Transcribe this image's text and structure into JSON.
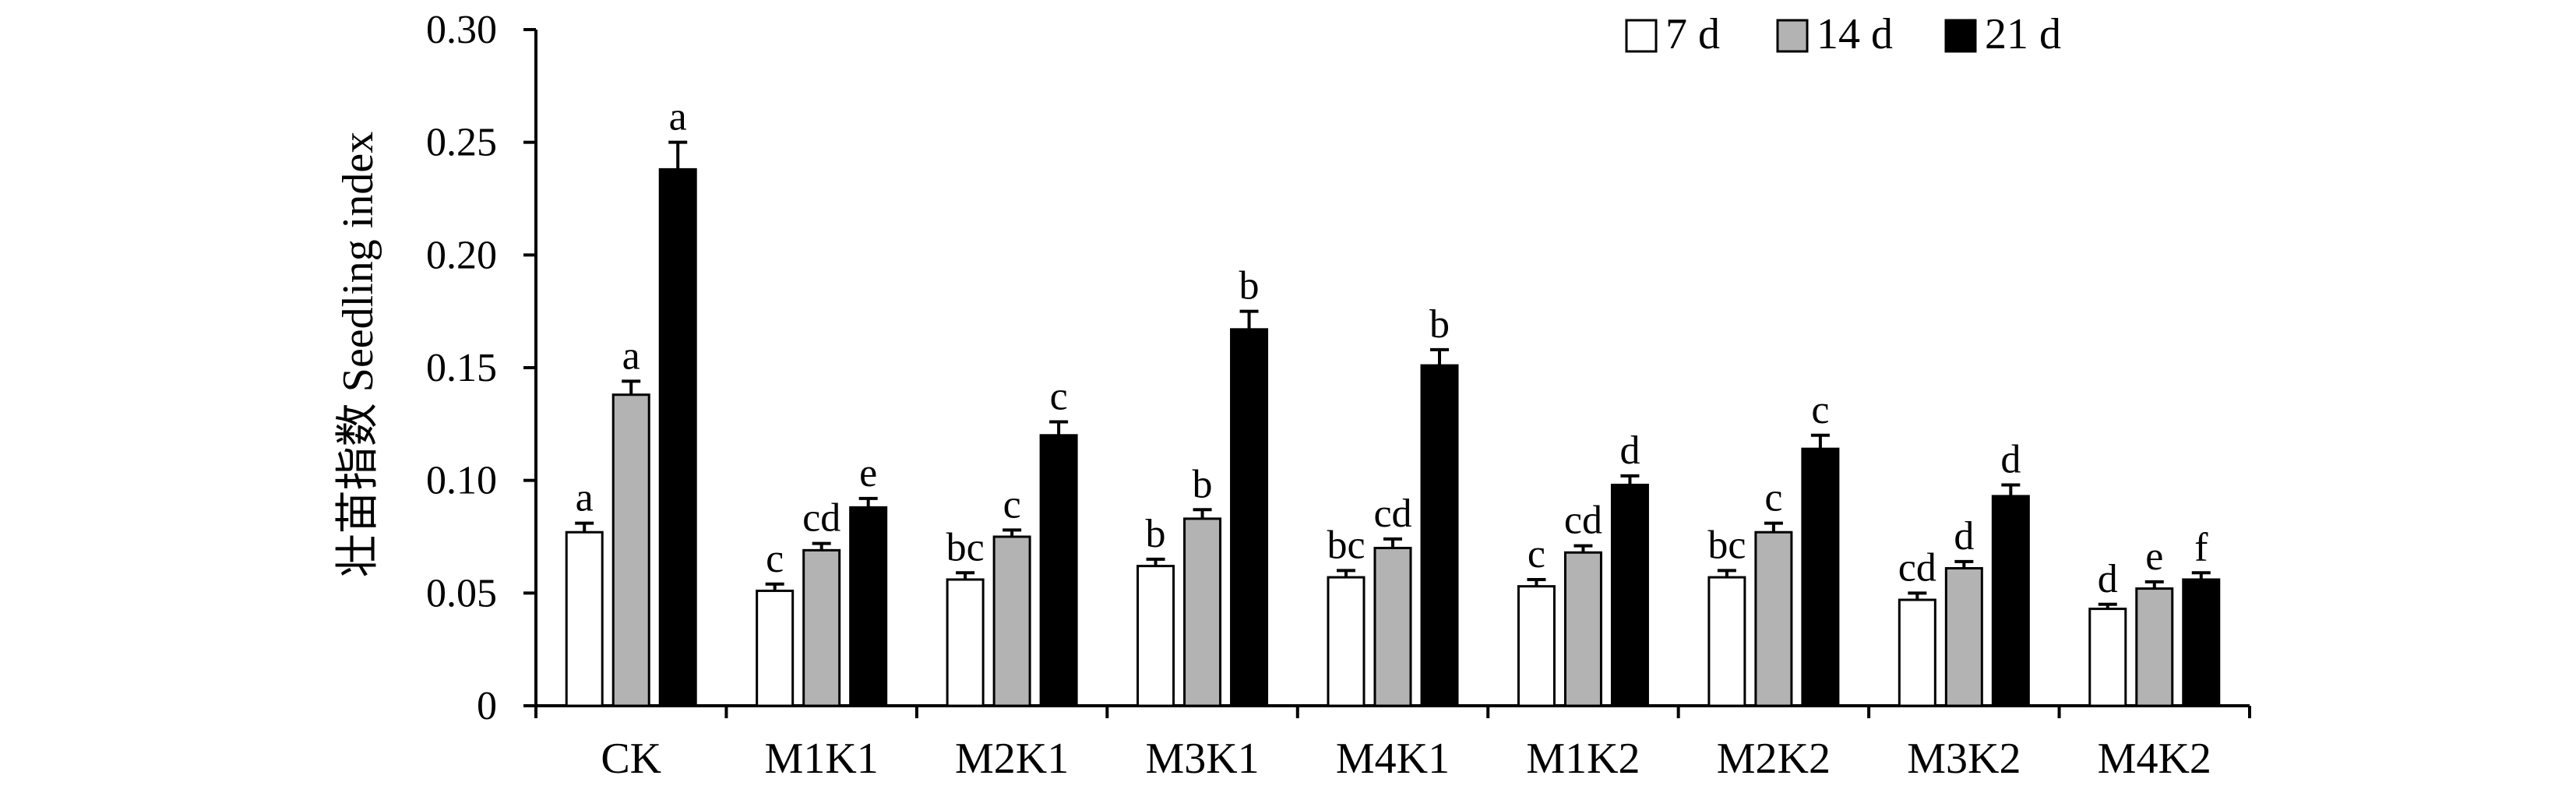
{
  "chart_data": {
    "type": "bar",
    "ylabel": "壮苗指数 Seedling index",
    "xlabel": "",
    "ylim": [
      0,
      0.3
    ],
    "yticks": [
      0,
      0.05,
      0.1,
      0.15,
      0.2,
      0.25,
      0.3
    ],
    "ytick_labels": [
      "0",
      "0.05",
      "0.10",
      "0.15",
      "0.20",
      "0.25",
      "0.30"
    ],
    "categories": [
      "CK",
      "M1K1",
      "M2K1",
      "M3K1",
      "M4K1",
      "M1K2",
      "M2K2",
      "M3K2",
      "M4K2"
    ],
    "legend_position": "top-right",
    "series": [
      {
        "name": "7 d",
        "color": "#ffffff",
        "values": [
          0.077,
          0.051,
          0.056,
          0.062,
          0.057,
          0.053,
          0.057,
          0.047,
          0.043
        ],
        "errors": [
          0.004,
          0.003,
          0.003,
          0.003,
          0.003,
          0.003,
          0.003,
          0.003,
          0.002
        ],
        "letters": [
          "a",
          "c",
          "bc",
          "b",
          "bc",
          "c",
          "bc",
          "cd",
          "d"
        ]
      },
      {
        "name": "14 d",
        "color": "#b3b3b3",
        "values": [
          0.138,
          0.069,
          0.075,
          0.083,
          0.07,
          0.068,
          0.077,
          0.061,
          0.052
        ],
        "errors": [
          0.006,
          0.003,
          0.003,
          0.004,
          0.004,
          0.003,
          0.004,
          0.003,
          0.003
        ],
        "letters": [
          "a",
          "cd",
          "c",
          "b",
          "cd",
          "cd",
          "c",
          "d",
          "e"
        ]
      },
      {
        "name": "21 d",
        "color": "#000000",
        "values": [
          0.238,
          0.088,
          0.12,
          0.167,
          0.151,
          0.098,
          0.114,
          0.093,
          0.056
        ],
        "errors": [
          0.012,
          0.004,
          0.006,
          0.008,
          0.007,
          0.004,
          0.006,
          0.005,
          0.003
        ],
        "letters": [
          "a",
          "e",
          "c",
          "b",
          "b",
          "d",
          "c",
          "d",
          "f"
        ]
      }
    ]
  }
}
